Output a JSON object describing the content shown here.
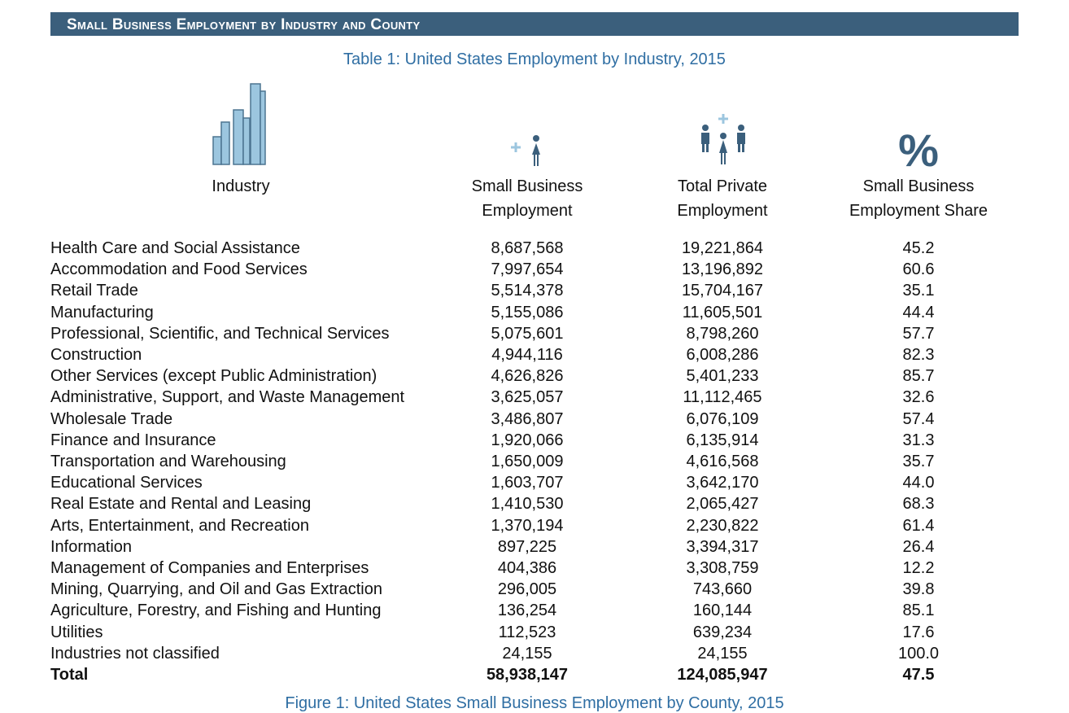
{
  "header": {
    "banner": "Small Business Employment by Industry and County",
    "title": "Table 1: United States Employment by Industry, 2015",
    "share_icon": "%"
  },
  "table": {
    "columns": [
      [
        "Industry"
      ],
      [
        "Small Business",
        "Employment"
      ],
      [
        "Total Private",
        "Employment"
      ],
      [
        "Small Business",
        "Employment Share"
      ]
    ],
    "rows": [
      [
        "Health Care and Social Assistance",
        "8,687,568",
        "19,221,864",
        "45.2"
      ],
      [
        "Accommodation and Food Services",
        "7,997,654",
        "13,196,892",
        "60.6"
      ],
      [
        "Retail Trade",
        "5,514,378",
        "15,704,167",
        "35.1"
      ],
      [
        "Manufacturing",
        "5,155,086",
        "11,605,501",
        "44.4"
      ],
      [
        "Professional, Scientific, and Technical Services",
        "5,075,601",
        "8,798,260",
        "57.7"
      ],
      [
        "Construction",
        "4,944,116",
        "6,008,286",
        "82.3"
      ],
      [
        "Other Services (except Public Administration)",
        "4,626,826",
        "5,401,233",
        "85.7"
      ],
      [
        "Administrative, Support, and Waste Management",
        "3,625,057",
        "11,112,465",
        "32.6"
      ],
      [
        "Wholesale Trade",
        "3,486,807",
        "6,076,109",
        "57.4"
      ],
      [
        "Finance and Insurance",
        "1,920,066",
        "6,135,914",
        "31.3"
      ],
      [
        "Transportation and Warehousing",
        "1,650,009",
        "4,616,568",
        "35.7"
      ],
      [
        "Educational Services",
        "1,603,707",
        "3,642,170",
        "44.0"
      ],
      [
        "Real Estate and Rental and Leasing",
        "1,410,530",
        "2,065,427",
        "68.3"
      ],
      [
        "Arts, Entertainment, and Recreation",
        "1,370,194",
        "2,230,822",
        "61.4"
      ],
      [
        "Information",
        "897,225",
        "3,394,317",
        "26.4"
      ],
      [
        "Management of Companies and Enterprises",
        "404,386",
        "3,308,759",
        "12.2"
      ],
      [
        "Mining, Quarrying, and Oil and Gas Extraction",
        "296,005",
        "743,660",
        "39.8"
      ],
      [
        "Agriculture, Forestry, and Fishing and Hunting",
        "136,254",
        "160,144",
        "85.1"
      ],
      [
        "Utilities",
        "112,523",
        "639,234",
        "17.6"
      ],
      [
        "Industries not classified",
        "24,155",
        "24,155",
        "100.0"
      ]
    ],
    "total": [
      "Total",
      "58,938,147",
      "124,085,947",
      "47.5"
    ]
  },
  "footer": {
    "next_caption": "Figure 1: United States Small Business Employment by County, 2015"
  }
}
